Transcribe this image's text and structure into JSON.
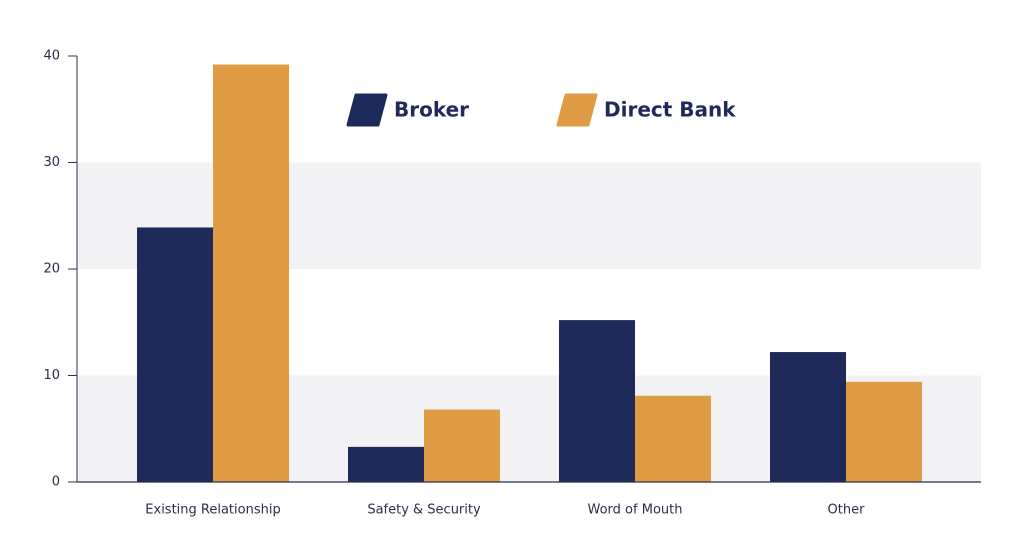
{
  "chart_data": {
    "type": "bar",
    "categories": [
      "Existing Relationship",
      "Safety & Security",
      "Word of Mouth",
      "Other"
    ],
    "series": [
      {
        "name": "Broker",
        "color": "#1e2a5a",
        "values": [
          23.9,
          3.3,
          15.2,
          12.2
        ]
      },
      {
        "name": "Direct Bank",
        "color": "#e09c45",
        "values": [
          39.2,
          6.8,
          8.1,
          9.4
        ]
      }
    ],
    "ylim": [
      0,
      40
    ],
    "yticks": [
      0,
      10,
      20,
      30,
      40
    ],
    "grid": true,
    "legend": "top"
  }
}
